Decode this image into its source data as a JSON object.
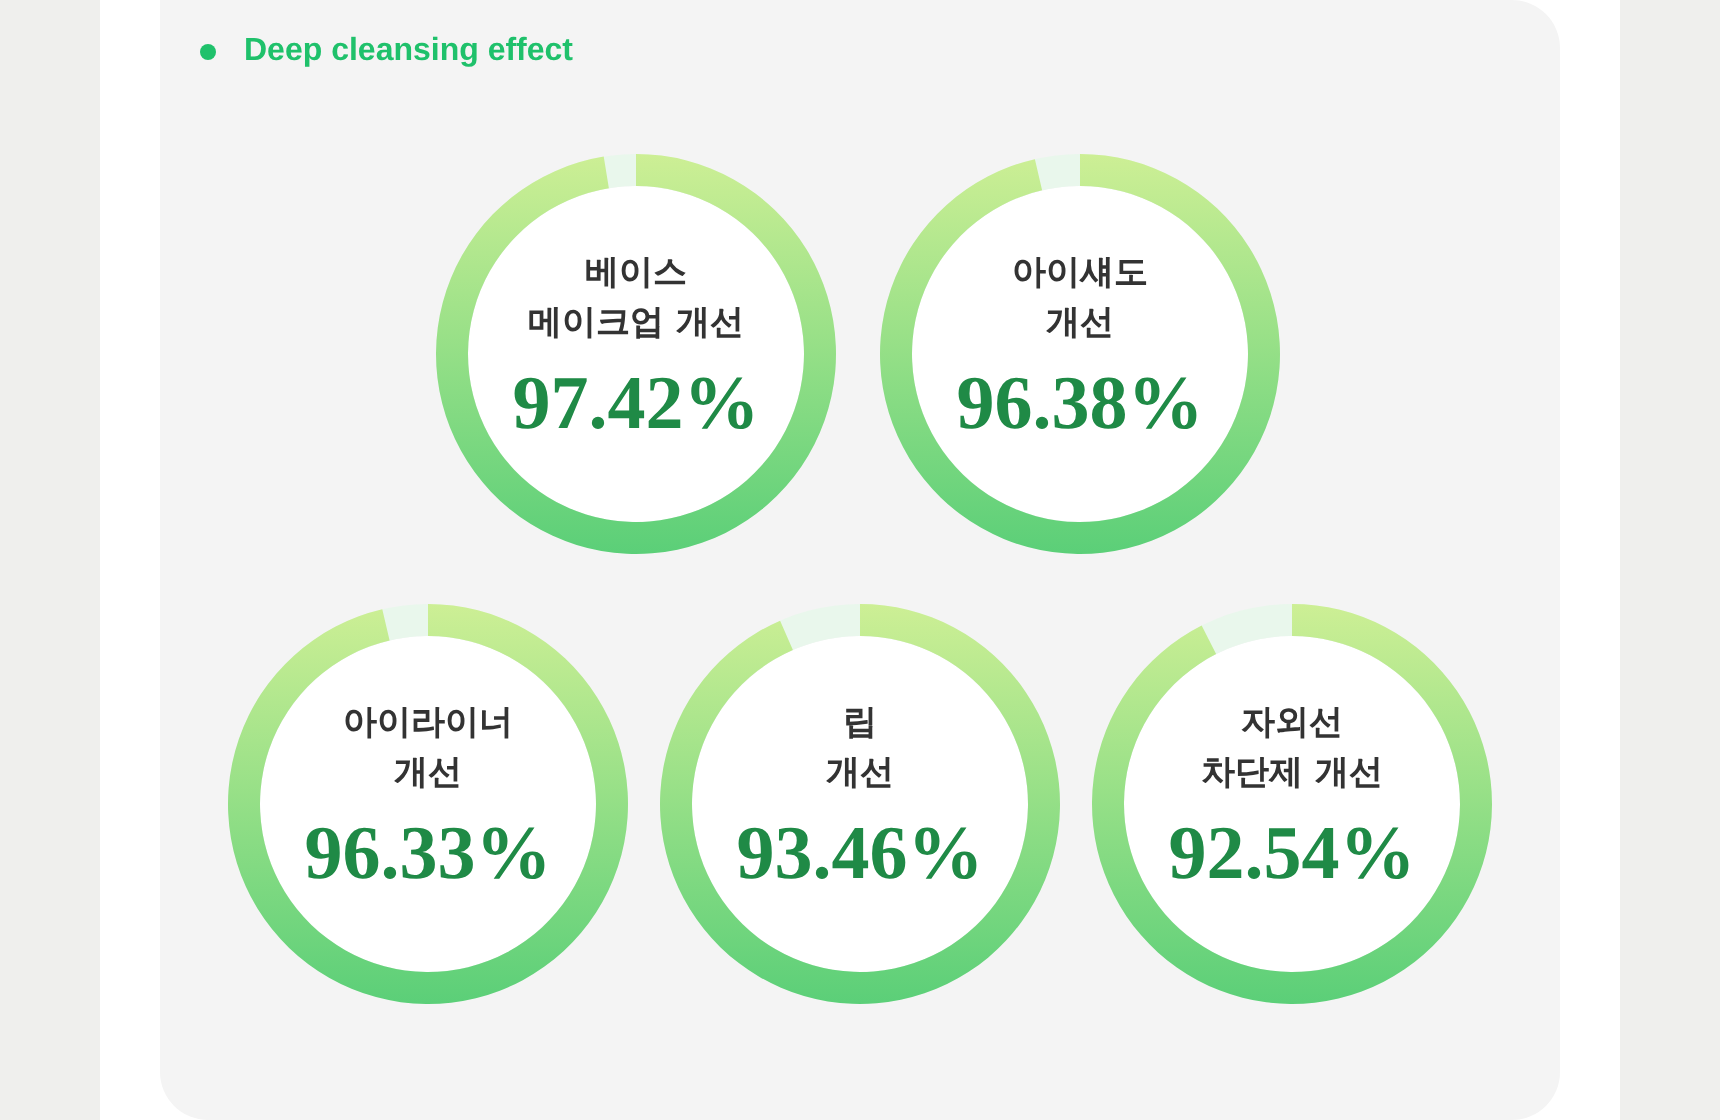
{
  "chart_data": {
    "type": "other",
    "title": "Deep cleansing effect",
    "categories": [
      "베이스\n메이크업 개선",
      "아이섀도\n개선",
      "아이라이너\n개선",
      "립\n개선",
      "자외선\n차단제 개선"
    ],
    "values": [
      97.42,
      96.38,
      96.33,
      93.46,
      92.54
    ],
    "value_labels": [
      "97.42%",
      "96.38%",
      "96.33%",
      "93.46%",
      "92.54%"
    ]
  }
}
